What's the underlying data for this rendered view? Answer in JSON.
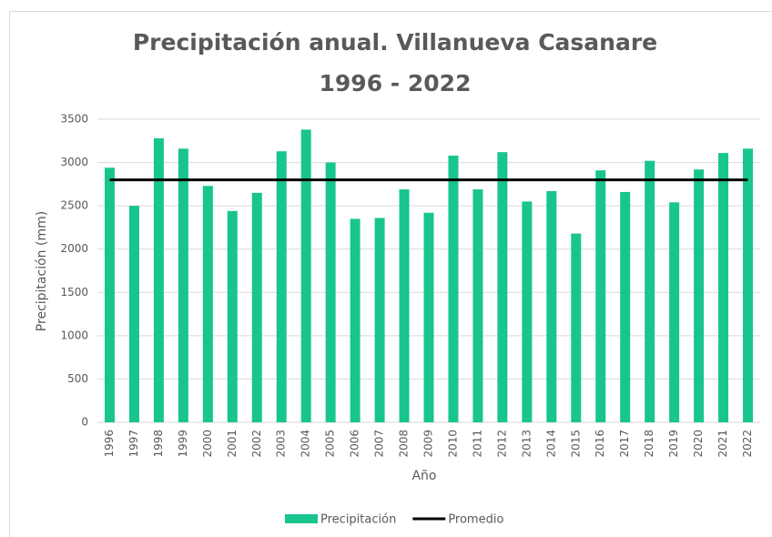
{
  "chart_data": {
    "type": "bar",
    "title": "Precipitación anual. Villanueva Casanare",
    "subtitle": "1996 - 2022",
    "x_label": "Año",
    "y_label": "Precipitación (mm)",
    "categories": [
      "1996",
      "1997",
      "1998",
      "1999",
      "2000",
      "2001",
      "2002",
      "2003",
      "2004",
      "2005",
      "2006",
      "2007",
      "2008",
      "2009",
      "2010",
      "2011",
      "2012",
      "2013",
      "2014",
      "2015",
      "2016",
      "2017",
      "2018",
      "2019",
      "2020",
      "2021",
      "2022"
    ],
    "series": [
      {
        "name": "Precipitación",
        "type": "bar",
        "color": "#19c58f",
        "values": [
          2940,
          2500,
          3280,
          3160,
          2730,
          2440,
          2650,
          3130,
          3380,
          3000,
          2350,
          2360,
          2690,
          2420,
          3080,
          2690,
          3120,
          2550,
          2670,
          2180,
          2910,
          2660,
          3020,
          2540,
          2920,
          3110,
          3160
        ]
      },
      {
        "name": "Promedio",
        "type": "line",
        "color": "#000000",
        "values": [
          2800,
          2800,
          2800,
          2800,
          2800,
          2800,
          2800,
          2800,
          2800,
          2800,
          2800,
          2800,
          2800,
          2800,
          2800,
          2800,
          2800,
          2800,
          2800,
          2800,
          2800,
          2800,
          2800,
          2800,
          2800,
          2800,
          2800
        ]
      }
    ],
    "ylim": [
      0,
      3500
    ],
    "yticks": [
      0,
      500,
      1000,
      1500,
      2000,
      2500,
      3000,
      3500
    ],
    "grid": true,
    "legend": "bottom"
  }
}
